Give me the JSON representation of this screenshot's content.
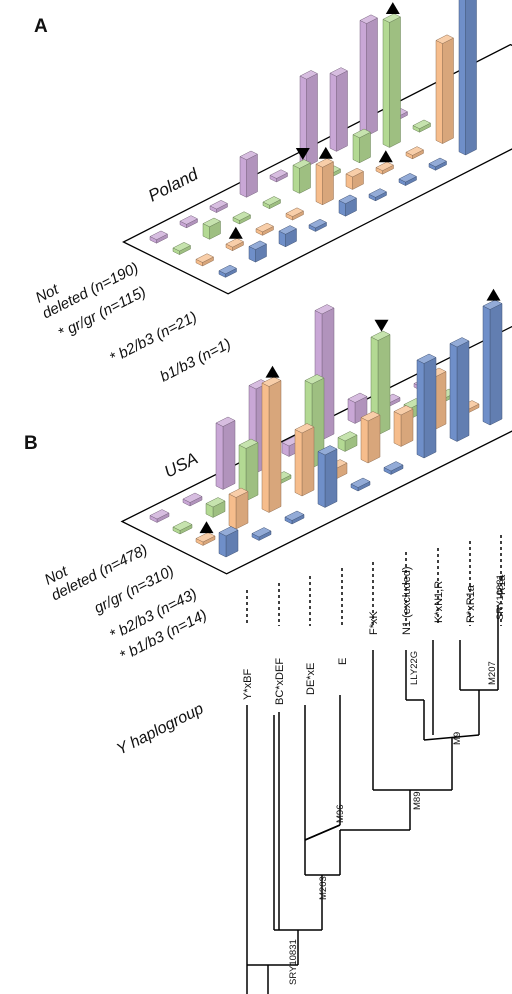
{
  "figure": {
    "panel_a": "A",
    "panel_b": "B",
    "y_haplogroup_label": "Y haplogroup"
  },
  "chart_data": [
    {
      "type": "bar",
      "panel": "A",
      "title": "Poland",
      "rows": [
        "Not deleted (n=190)",
        "* gr/gr (n=115)",
        "* b2/b3 (n=21)",
        "b1/b3 (n=1)"
      ],
      "row_label_lines": [
        [
          "Not",
          "deleted (n=190)"
        ],
        [
          "* gr/gr (n=115)"
        ],
        [
          "* b2/b3 (n=21)"
        ],
        [
          "b1/b3 (n=1)"
        ]
      ],
      "columns": [
        "Y*xBF",
        "BC*xDEF",
        "DE*xE",
        "E",
        "F*xK",
        "N1 (excluded)",
        "K*xN1,R",
        "R*xR1a",
        "R1a"
      ],
      "row_colors": [
        "#c9a7d6",
        "#b3d993",
        "#f6bd8c",
        "#6f8fc9"
      ],
      "values": [
        [
          0,
          0,
          0,
          3,
          0,
          7,
          6,
          9,
          0
        ],
        [
          0,
          1,
          0,
          0,
          2,
          0,
          2,
          10,
          0
        ],
        [
          0,
          0,
          0,
          0,
          3,
          1,
          0,
          0,
          8
        ],
        [
          0,
          1,
          1,
          0,
          1,
          0,
          0,
          0,
          14
        ]
      ],
      "markers": [
        {
          "row": 1,
          "col": 4,
          "dir": "down"
        },
        {
          "row": 1,
          "col": 7,
          "dir": "up"
        },
        {
          "row": 2,
          "col": 1,
          "dir": "up"
        },
        {
          "row": 2,
          "col": 4,
          "dir": "up"
        },
        {
          "row": 2,
          "col": 6,
          "dir": "up"
        }
      ]
    },
    {
      "type": "bar",
      "panel": "B",
      "title": "USA",
      "rows": [
        "Not deleted (n=478)",
        "gr/gr (n=310)",
        "* b2/b3 (n=43)",
        "* b1/b3 (n=14)"
      ],
      "row_label_lines": [
        [
          "Not",
          "deleted (n=478)"
        ],
        [
          "gr/gr (n=310)"
        ],
        [
          "* b2/b3 (n=43)"
        ],
        [
          "* b1/b3 (n=14)"
        ]
      ],
      "columns": [
        "Y*xBF",
        "BC*xDEF",
        "DE*xE",
        "E",
        "F*xK",
        "N1 (excluded)",
        "K*xN1,R",
        "R*xR1a",
        "R1a"
      ],
      "row_colors": [
        "#c9a7d6",
        "#b3d993",
        "#f6bd8c",
        "#6f8fc9"
      ],
      "values": [
        [
          0,
          0,
          6,
          8,
          1,
          12,
          2,
          0,
          0
        ],
        [
          0,
          1,
          5,
          0,
          8,
          1,
          9,
          1,
          0
        ],
        [
          0,
          3,
          12,
          6,
          1,
          4,
          3,
          5,
          0
        ],
        [
          2,
          0,
          0,
          5,
          0,
          0,
          9,
          9,
          11
        ]
      ],
      "markers": [
        {
          "row": 1,
          "col": 6,
          "dir": "down"
        },
        {
          "row": 2,
          "col": 0,
          "dir": "up"
        },
        {
          "row": 2,
          "col": 2,
          "dir": "up"
        },
        {
          "row": 3,
          "col": 8,
          "dir": "up"
        }
      ]
    }
  ],
  "tree": {
    "tips": [
      "Y*xBF",
      "BC*xDEF",
      "DE*xE",
      "E",
      "F*xK",
      "N1 (excluded)",
      "K*xN1,R",
      "R*xR1a",
      "R1a"
    ],
    "mutations": [
      "SRY10831",
      "M203",
      "M96",
      "M89",
      "M9",
      "LLY22G",
      "M207",
      "SRY10831"
    ]
  }
}
